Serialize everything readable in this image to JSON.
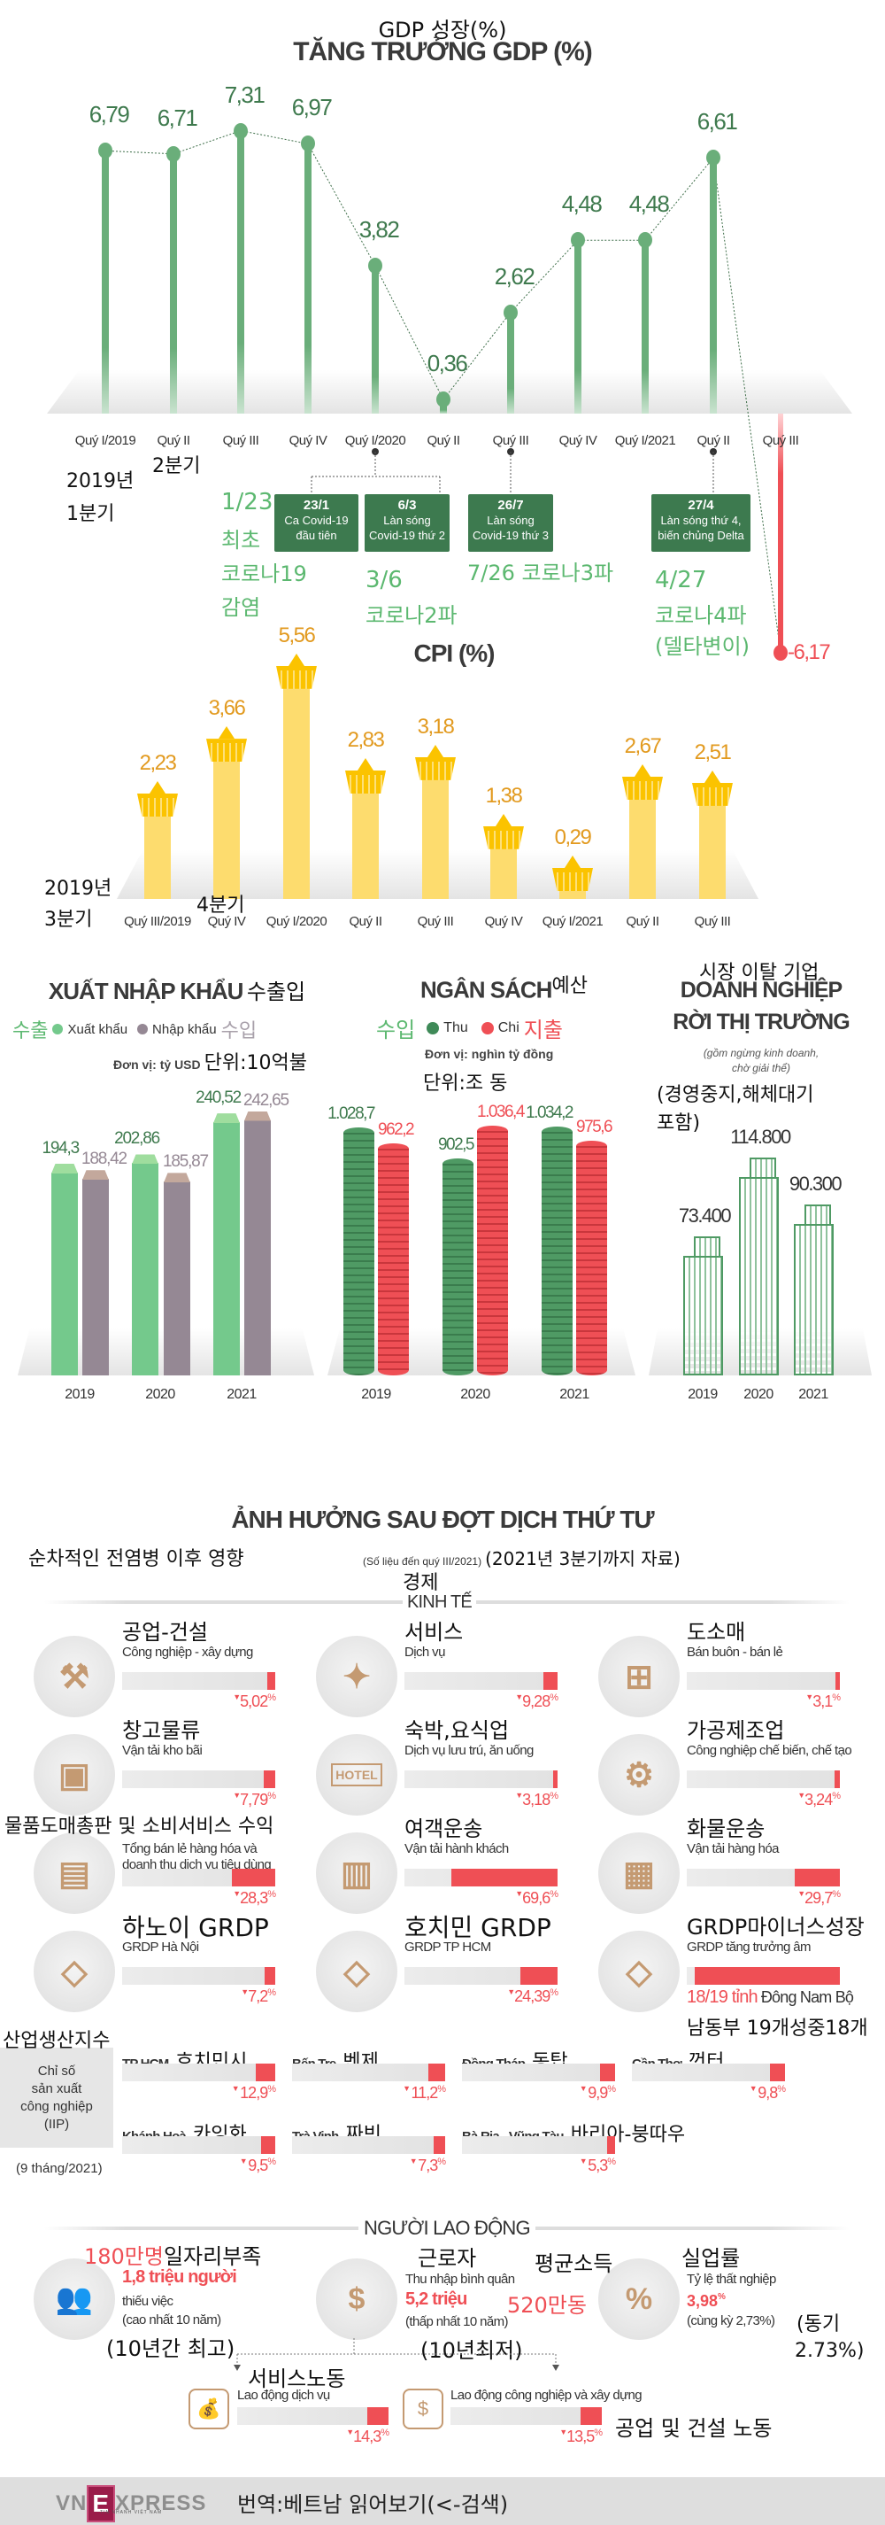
{
  "gdp": {
    "title_kr": "GDP 성장(%)",
    "title": "TĂNG TRƯỞNG GDP (%)",
    "chart_data": {
      "type": "bar",
      "categories": [
        "Quý I/2019",
        "Quý II",
        "Quý III",
        "Quý IV",
        "Quý I/2020",
        "Quý II",
        "Quý III",
        "Quý IV",
        "Quý I/2021",
        "Quý II",
        "Quý III"
      ],
      "values": [
        6.79,
        6.71,
        7.31,
        6.97,
        3.82,
        0.36,
        2.62,
        4.48,
        4.48,
        6.61,
        -6.17
      ],
      "value_labels": [
        "6,79",
        "6,71",
        "7,31",
        "6,97",
        "3,82",
        "0,36",
        "2,62",
        "4,48",
        "4,48",
        "6,61",
        "-6,17"
      ],
      "colors": {
        "positive": "#6aae7a",
        "negative": "#ef4f55",
        "label": "#3f7a4e"
      }
    },
    "events": [
      {
        "date": "23/1",
        "lines": [
          "Ca Covid-19",
          "đầu tiên"
        ]
      },
      {
        "date": "6/3",
        "lines": [
          "Làn sóng",
          "Covid-19 thứ 2"
        ]
      },
      {
        "date": "26/7",
        "lines": [
          "Làn sóng",
          "Covid-19 thứ 3"
        ]
      },
      {
        "date": "27/4",
        "lines": [
          "Làn sóng thứ 4,",
          "biến chủng Delta"
        ]
      }
    ],
    "overlays": [
      "2019년",
      "1분기",
      "2분기",
      "1/23",
      "최초",
      "코로나19",
      "감염",
      "3/6",
      "코로나2파",
      "7/26 코로나3파",
      "4/27",
      "코로나4파",
      "(델타변이)"
    ]
  },
  "cpi": {
    "title": "CPI (%)",
    "chart_data": {
      "type": "bar",
      "categories": [
        "Quý III/2019",
        "Quý IV",
        "Quý I/2020",
        "Quý II",
        "Quý III",
        "Quý IV",
        "Quý I/2021",
        "Quý II",
        "Quý III"
      ],
      "values": [
        2.23,
        3.66,
        5.56,
        2.83,
        3.18,
        1.38,
        0.29,
        2.67,
        2.51
      ],
      "value_labels": [
        "2,23",
        "3,66",
        "5,56",
        "2,83",
        "3,18",
        "1,38",
        "0,29",
        "2,67",
        "2,51"
      ],
      "colors": {
        "bar": "#fddc6e",
        "basket": "#fbc300",
        "label": "#e29a1f"
      }
    },
    "overlays": [
      "2019년",
      "3분기",
      "4분기"
    ]
  },
  "trade": {
    "title": "XUẤT NHẬP KHẨU",
    "title_kr": "수출입",
    "legend": [
      {
        "label": "Xuất khẩu",
        "kr": "수출",
        "color": "#74c98c"
      },
      {
        "label": "Nhập khẩu",
        "kr": "수입",
        "color": "#958894"
      }
    ],
    "unit": "Đơn vị: tỷ USD",
    "unit_kr": "단위:10억불",
    "chart_data": {
      "type": "bar",
      "categories": [
        "2019",
        "2020",
        "2021"
      ],
      "series": [
        {
          "name": "Xuất khẩu",
          "values": [
            194.3,
            202.86,
            240.52
          ],
          "labels": [
            "194,3",
            "202,86",
            "240,52"
          ]
        },
        {
          "name": "Nhập khẩu",
          "values": [
            188.42,
            185.87,
            242.65
          ],
          "labels": [
            "188,42",
            "185,87",
            "242,65"
          ]
        }
      ]
    }
  },
  "budget": {
    "title": "NGÂN SÁCH",
    "title_kr": "예산",
    "legend": [
      {
        "label": "Thu",
        "kr": "수입",
        "color": "#3f8a58"
      },
      {
        "label": "Chi",
        "kr": "지출",
        "color": "#ef4f55"
      }
    ],
    "unit": "Đơn vị: nghìn tỷ đồng",
    "unit_kr": "단위:조 동",
    "chart_data": {
      "type": "bar",
      "categories": [
        "2019",
        "2020",
        "2021"
      ],
      "series": [
        {
          "name": "Thu",
          "values": [
            1028.7,
            902.5,
            1034.2
          ],
          "labels": [
            "1.028,7",
            "902,5",
            "1.034,2"
          ]
        },
        {
          "name": "Chi",
          "values": [
            962.2,
            1036.4,
            975.6
          ],
          "labels": [
            "962,2",
            "1.036,4",
            "975,6"
          ]
        }
      ]
    }
  },
  "business": {
    "title_kr": "시장 이탈 기업",
    "title_line1": "DOANH NGHIỆP",
    "title_line2": "RỜI THỊ TRƯỜNG",
    "note_line1": "(gồm ngừng kinh doanh,",
    "note_line2": "chờ giải thể)",
    "note_kr_1": "(경영중지,해체대기",
    "note_kr_2": "포함)",
    "chart_data": {
      "type": "bar",
      "categories": [
        "2019",
        "2020",
        "2021"
      ],
      "values": [
        73400,
        114800,
        90300
      ],
      "labels": [
        "73.400",
        "114.800",
        "90.300"
      ]
    }
  },
  "impact": {
    "title": "ẢNH HƯỞNG SAU ĐỢT DỊCH THỨ TƯ",
    "title_kr": "순차적인 전염병 이후 영향",
    "note": "(Số liệu đến quý III/2021)",
    "note_kr": "(2021년 3분기까지 자료)",
    "economy_kr": "경제",
    "economy": "KINH TẾ",
    "items": [
      {
        "kr": "공업-건설",
        "label": "Công nghiệp - xây dựng",
        "value": "5,02",
        "pct": 5.02,
        "icon": "crane-icon",
        "glyph": "⚒"
      },
      {
        "kr": "서비스",
        "label": "Dịch vụ",
        "value": "9,28",
        "pct": 9.28,
        "icon": "service-tools-icon",
        "glyph": "✦"
      },
      {
        "kr": "도소매",
        "label": "Bán buôn - bán lẻ",
        "value": "3,1",
        "pct": 3.1,
        "icon": "shopping-cart-icon",
        "glyph": "⊞"
      },
      {
        "kr": "창고물류",
        "label": "Vận tải kho bãi",
        "value": "7,79",
        "pct": 7.79,
        "icon": "truck-icon",
        "glyph": "▣"
      },
      {
        "kr": "숙박,요식업",
        "label": "Dịch vụ lưu trú, ăn uống",
        "value": "3,18",
        "pct": 3.18,
        "icon": "hotel-sign-icon",
        "glyph": "HOTEL"
      },
      {
        "kr": "가공제조업",
        "label": "Công nghiệp chế biến, chế tạo",
        "value": "3,24",
        "pct": 3.24,
        "icon": "conveyor-icon",
        "glyph": "⚙"
      },
      {
        "kr": "물품도매총판 및 소비서비스 수익",
        "label": "Tổng bán lẻ hàng hóa và",
        "label2": "doanh thu dịch vụ tiêu dùng",
        "value": "28,3",
        "pct": 28.3,
        "icon": "card-terminal-icon",
        "glyph": "▤"
      },
      {
        "kr": "여객운송",
        "label": "Vận tải hành khách",
        "value": "69,6",
        "pct": 69.6,
        "icon": "train-icon",
        "glyph": "▥"
      },
      {
        "kr": "화물운송",
        "label": "Vận tải hàng hóa",
        "value": "29,7",
        "pct": 29.7,
        "icon": "cargo-icon",
        "glyph": "▦"
      },
      {
        "kr": "하노이 GRDP",
        "label": "GRDP Hà Nội",
        "value": "7,2",
        "pct": 7.2,
        "icon": "hanoi-map-icon",
        "glyph": "◇"
      },
      {
        "kr": "호치민 GRDP",
        "label": "GRDP TP HCM",
        "value": "24,39",
        "pct": 24.39,
        "icon": "hcm-map-icon",
        "glyph": "◇"
      },
      {
        "kr": "GRDP마이너스성장",
        "label": "GRDP tăng trưởng âm",
        "value_red": "18/19 tỉnh",
        "value_rest": "Đông Nam Bộ",
        "value_kr": "남동부 19개성중18개",
        "pct": 94.7,
        "icon": "southeast-map-icon",
        "glyph": "◇"
      }
    ],
    "iip": {
      "kr": "산업생산지수",
      "label_lines": [
        "Chỉ số",
        "sản xuất",
        "công nghiệp",
        "(IIP)"
      ],
      "period": "(9 tháng/2021)",
      "items": [
        {
          "label": "TP HCM",
          "kr": "호치민시",
          "value": "12,9",
          "pct": 12.9
        },
        {
          "label": "Bến Tre",
          "kr": "벤제",
          "value": "11,2",
          "pct": 11.2
        },
        {
          "label": "Đồng Tháp",
          "kr": "동탑",
          "value": "9,9",
          "pct": 9.9
        },
        {
          "label": "Cần Thơ",
          "kr": "껀터",
          "value": "9,8",
          "pct": 9.8
        },
        {
          "label": "Khánh Hoà",
          "kr": "카잉화",
          "value": "9,5",
          "pct": 9.5
        },
        {
          "label": "Trà Vinh",
          "kr": "짜빈",
          "value": "7,3",
          "pct": 7.3
        },
        {
          "label": "Bà Rịa - Vũng Tàu",
          "kr": "바리아-붕따우",
          "value": "5,3",
          "pct": 5.3
        }
      ]
    }
  },
  "labor": {
    "title": "NGƯỜI LAO ĐỘNG",
    "unemployed_work": {
      "kr_red": "180만명",
      "kr": "일자리부족",
      "value": "1,8 triệu người",
      "line1": "thiếu việc",
      "line2": "(cao nhất 10 năm)",
      "kr2": "(10년간 최고)"
    },
    "income": {
      "kr": "근로자",
      "kr_b": "평균소득",
      "label": "Thu nhập bình quân",
      "value": "5,2 triệu",
      "value_kr": "520만동",
      "line2": "(thấp nhất 10 năm)",
      "kr2": "(10년최저)"
    },
    "unemployment": {
      "kr": "실업률",
      "label": "Tỷ lệ thất nghiệp",
      "value": "3,98",
      "line2": "(cùng kỳ 2,73%)",
      "kr2": "(동기",
      "kr3": "2.73%)"
    },
    "service_kr": "서비스노동",
    "industry_kr": "공업 및 건설 노동",
    "bars": [
      {
        "label": "Lao động dịch vụ",
        "value": "14,3",
        "pct": 14.3
      },
      {
        "label": "Lao động công nghiệp và xây dựng",
        "value": "13,5",
        "pct": 13.5
      }
    ]
  },
  "footer": {
    "logo_pre": "VN",
    "logo_e": "E",
    "logo_post": "XPRESS",
    "logo_sub": "TIN NHANH VIỆT NAM",
    "caption": "번역:베트남 읽어보기(<-검색)"
  }
}
